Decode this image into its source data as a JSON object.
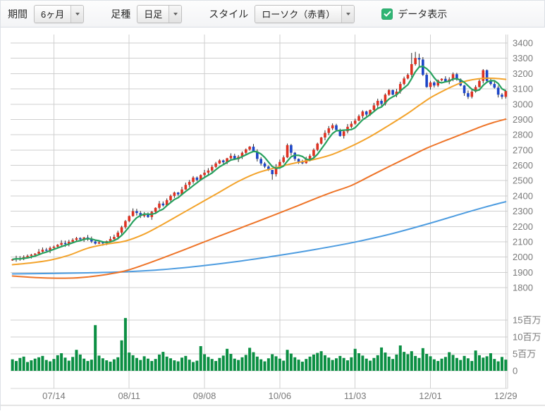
{
  "toolbar": {
    "period_label": "期間",
    "period_value": "6ヶ月",
    "bartype_label": "足種",
    "bartype_value": "日足",
    "style_label": "スタイル",
    "style_value": "ローソク（赤青）",
    "data_display_label": "データ表示",
    "data_display_checked": true
  },
  "colors": {
    "up_candle": "#df3222",
    "down_candle": "#1d46c8",
    "wick": "#2b2b2b",
    "ma_short": "#27a15e",
    "ma_mid": "#f3a32b",
    "ma_long": "#ee7428",
    "ma_longest": "#4d9ce0",
    "volume": "#0b8f43",
    "grid": "#cfcfcf",
    "axis_text": "#7a7a7a",
    "checkbox_green": "#2fb574"
  },
  "chart_data": {
    "type": "candlestick_with_volume",
    "ylim": [
      1800,
      3400
    ],
    "price_step": 100,
    "grid": true,
    "legend": "none",
    "x_ticks": [
      {
        "label": "07/14",
        "index": 11
      },
      {
        "label": "08/11",
        "index": 31
      },
      {
        "label": "09/08",
        "index": 51
      },
      {
        "label": "10/06",
        "index": 71
      },
      {
        "label": "11/03",
        "index": 91
      },
      {
        "label": "12/01",
        "index": 111
      },
      {
        "label": "12/29",
        "index": 131
      }
    ],
    "volume_axis": {
      "unit": "百万",
      "ticks": [
        {
          "label": "15百万",
          "value": 15
        },
        {
          "label": "10百万",
          "value": 10
        },
        {
          "label": "5百万",
          "value": 5
        },
        {
          "label": "0",
          "value": 0
        }
      ]
    },
    "first_open": 1978,
    "closes": [
      1985,
      1992,
      1988,
      2000,
      2008,
      2015,
      2022,
      2035,
      2048,
      2042,
      2060,
      2068,
      2080,
      2092,
      2085,
      2100,
      2112,
      2124,
      2116,
      2128,
      2120,
      2102,
      2088,
      2096,
      2090,
      2104,
      2118,
      2132,
      2160,
      2195,
      2235,
      2268,
      2300,
      2288,
      2268,
      2284,
      2262,
      2296,
      2322,
      2350,
      2338,
      2372,
      2400,
      2422,
      2410,
      2442,
      2472,
      2492,
      2520,
      2504,
      2536,
      2552,
      2566,
      2590,
      2612,
      2632,
      2620,
      2646,
      2662,
      2640,
      2656,
      2682,
      2704,
      2722,
      2690,
      2642,
      2612,
      2592,
      2570,
      2542,
      2590,
      2622,
      2652,
      2732,
      2682,
      2642,
      2620,
      2614,
      2642,
      2662,
      2702,
      2742,
      2782,
      2812,
      2842,
      2862,
      2832,
      2792,
      2822,
      2852,
      2872,
      2892,
      2922,
      2952,
      2932,
      2962,
      2992,
      3022,
      3002,
      3062,
      3092,
      3062,
      3082,
      3132,
      3168,
      3192,
      3262,
      3302,
      3292,
      3192,
      3112,
      3142,
      3122,
      3156,
      3166,
      3146,
      3162,
      3196,
      3162,
      3122,
      3072,
      3048,
      3082,
      3112,
      3152,
      3222,
      3152,
      3132,
      3108,
      3062,
      3048,
      3086
    ],
    "volumes_millions": [
      3.4,
      2.9,
      3.8,
      4.2,
      2.6,
      3.1,
      3.6,
      4.0,
      4.4,
      3.2,
      2.8,
      3.5,
      4.6,
      5.2,
      3.9,
      3.0,
      4.1,
      6.2,
      4.8,
      3.6,
      2.9,
      3.3,
      13.5,
      4.5,
      3.7,
      3.1,
      2.7,
      3.4,
      4.0,
      9.0,
      15.6,
      5.4,
      4.6,
      3.8,
      3.2,
      4.3,
      3.6,
      2.9,
      3.5,
      4.8,
      5.6,
      4.2,
      3.7,
      3.1,
      2.8,
      3.9,
      4.4,
      3.3,
      2.6,
      3.0,
      7.3,
      4.9,
      4.1,
      3.5,
      2.9,
      3.8,
      4.5,
      6.5,
      5.0,
      3.6,
      3.2,
      4.0,
      4.7,
      6.8,
      5.5,
      4.2,
      3.4,
      2.8,
      3.7,
      4.9,
      4.3,
      3.6,
      3.0,
      6.2,
      5.1,
      4.0,
      3.3,
      2.7,
      3.5,
      4.2,
      4.8,
      5.3,
      5.8,
      4.6,
      3.9,
      3.2,
      3.7,
      4.4,
      3.8,
      3.1,
      4.0,
      6.5,
      5.2,
      4.5,
      3.6,
      3.0,
      3.8,
      4.6,
      6.9,
      5.4,
      4.2,
      3.5,
      4.8,
      7.5,
      5.6,
      4.9,
      5.8,
      4.4,
      3.8,
      6.7,
      5.0,
      4.3,
      3.4,
      2.9,
      3.6,
      4.1,
      5.5,
      4.7,
      3.8,
      3.2,
      4.4,
      3.7,
      2.9,
      6.0,
      4.6,
      3.9,
      4.3,
      5.2,
      3.5,
      2.8,
      4.1,
      3.3
    ],
    "wick_overrides": {
      "69": [
        2565,
        2506
      ],
      "106": [
        3335,
        3175
      ],
      "107": [
        3342,
        3252
      ],
      "108": [
        3330,
        3238
      ]
    },
    "moving_averages": [
      {
        "name": "ma-short-green",
        "mode": "sma5_of_closes"
      },
      {
        "name": "ma-mid-yellow",
        "points": [
          [
            0,
            1950
          ],
          [
            5,
            1962
          ],
          [
            10,
            1980
          ],
          [
            15,
            2012
          ],
          [
            20,
            2058
          ],
          [
            25,
            2085
          ],
          [
            30,
            2105
          ],
          [
            35,
            2150
          ],
          [
            40,
            2215
          ],
          [
            45,
            2285
          ],
          [
            50,
            2355
          ],
          [
            55,
            2425
          ],
          [
            60,
            2495
          ],
          [
            65,
            2550
          ],
          [
            70,
            2585
          ],
          [
            75,
            2615
          ],
          [
            80,
            2638
          ],
          [
            85,
            2672
          ],
          [
            90,
            2725
          ],
          [
            95,
            2788
          ],
          [
            100,
            2862
          ],
          [
            105,
            2940
          ],
          [
            108,
            2992
          ],
          [
            111,
            3042
          ],
          [
            114,
            3082
          ],
          [
            117,
            3118
          ],
          [
            120,
            3148
          ],
          [
            123,
            3163
          ],
          [
            126,
            3170
          ],
          [
            129,
            3167
          ],
          [
            131,
            3162
          ]
        ]
      },
      {
        "name": "ma-long-orange",
        "points": [
          [
            0,
            1876
          ],
          [
            8,
            1864
          ],
          [
            15,
            1862
          ],
          [
            20,
            1870
          ],
          [
            25,
            1886
          ],
          [
            30,
            1910
          ],
          [
            35,
            1950
          ],
          [
            40,
            1995
          ],
          [
            45,
            2042
          ],
          [
            50,
            2090
          ],
          [
            55,
            2138
          ],
          [
            60,
            2185
          ],
          [
            65,
            2232
          ],
          [
            70,
            2280
          ],
          [
            75,
            2328
          ],
          [
            80,
            2378
          ],
          [
            85,
            2425
          ],
          [
            90,
            2468
          ],
          [
            95,
            2530
          ],
          [
            100,
            2592
          ],
          [
            105,
            2652
          ],
          [
            110,
            2712
          ],
          [
            115,
            2762
          ],
          [
            120,
            2810
          ],
          [
            125,
            2858
          ],
          [
            128,
            2882
          ],
          [
            131,
            2902
          ]
        ]
      },
      {
        "name": "ma-longest-blue",
        "points": [
          [
            0,
            1890
          ],
          [
            10,
            1893
          ],
          [
            20,
            1897
          ],
          [
            30,
            1904
          ],
          [
            40,
            1918
          ],
          [
            50,
            1942
          ],
          [
            60,
            1972
          ],
          [
            70,
            2008
          ],
          [
            80,
            2048
          ],
          [
            90,
            2093
          ],
          [
            100,
            2148
          ],
          [
            110,
            2215
          ],
          [
            120,
            2288
          ],
          [
            126,
            2330
          ],
          [
            131,
            2362
          ]
        ]
      }
    ]
  }
}
